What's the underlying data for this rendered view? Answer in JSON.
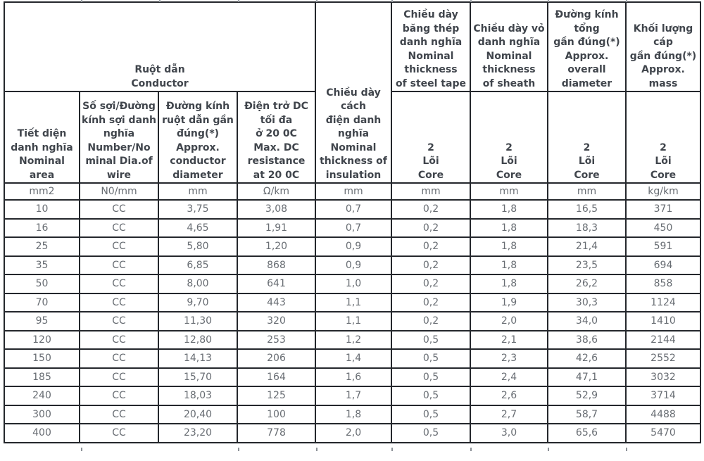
{
  "table": {
    "header": {
      "conductor_group": "Ruột dẫn\nConductor",
      "insulation": "Chiều dày\ncách\nđiện danh\nnghĩa\nNominal\nthickness of\ninsulation",
      "steel_tape": "Chiều dày\nbăng thép\ndanh nghĩa\nNominal\nthickness\nof steel tape",
      "sheath": "Chiều dày vỏ\ndanh nghĩa\nNominal\nthickness\nof sheath",
      "overall_diameter": "Đường kính\ntổng\ngần đúng(*)\nApprox.\noverall\ndiameter",
      "mass": "Khối lượng\ncáp\ngần đúng(*)\nApprox.\nmass",
      "nominal_area": "Tiết diện\ndanh nghĩa\nNominal\narea",
      "number_wire": "Số sợi/Đường\nkính sợi danh\nnghĩa\nNumber/No\nminal Dia.of\nwire",
      "conductor_diameter": "Đường kính\nruột dẫn gần\nđúng(*)\nApprox.\nconductor\ndiameter",
      "dc_resistance": "Điện trở DC\ntối đa\nở 20 0C\nMax. DC\nresistance\nat 20 0C",
      "core_2": "2\nLõi\nCore"
    },
    "units": [
      "mm2",
      "N0/mm",
      "mm",
      "Ω/km",
      "mm",
      "mm",
      "mm",
      "mm",
      "kg/km"
    ],
    "rows": [
      [
        "10",
        "CC",
        "3,75",
        "3,08",
        "0,7",
        "0,2",
        "1,8",
        "16,5",
        "371"
      ],
      [
        "16",
        "CC",
        "4,65",
        "1,91",
        "0,7",
        "0,2",
        "1,8",
        "18,3",
        "450"
      ],
      [
        "25",
        "CC",
        "5,80",
        "1,20",
        "0,9",
        "0,2",
        "1,8",
        "21,4",
        "591"
      ],
      [
        "35",
        "CC",
        "6,85",
        "868",
        "0,9",
        "0,2",
        "1,8",
        "23,5",
        "694"
      ],
      [
        "50",
        "CC",
        "8,00",
        "641",
        "1,0",
        "0,2",
        "1,8",
        "26,2",
        "858"
      ],
      [
        "70",
        "CC",
        "9,70",
        "443",
        "1,1",
        "0,2",
        "1,9",
        "30,3",
        "1124"
      ],
      [
        "95",
        "CC",
        "11,30",
        "320",
        "1,1",
        "0,2",
        "2,0",
        "34,0",
        "1410"
      ],
      [
        "120",
        "CC",
        "12,80",
        "253",
        "1,2",
        "0,5",
        "2,1",
        "38,6",
        "2144"
      ],
      [
        "150",
        "CC",
        "14,13",
        "206",
        "1,4",
        "0,5",
        "2,3",
        "42,6",
        "2552"
      ],
      [
        "185",
        "CC",
        "15,70",
        "164",
        "1,6",
        "0,5",
        "2,4",
        "47,1",
        "3032"
      ],
      [
        "240",
        "CC",
        "18,03",
        "125",
        "1,7",
        "0,5",
        "2,6",
        "52,9",
        "3714"
      ],
      [
        "300",
        "CC",
        "20,40",
        "100",
        "1,8",
        "0,5",
        "2,7",
        "58,7",
        "4488"
      ],
      [
        "400",
        "CC",
        "23,20",
        "778",
        "2,0",
        "0,5",
        "3,0",
        "65,6",
        "5470"
      ]
    ],
    "colors": {
      "border": "#24272c",
      "header_text": "#40454c",
      "body_text": "#686d73"
    }
  }
}
